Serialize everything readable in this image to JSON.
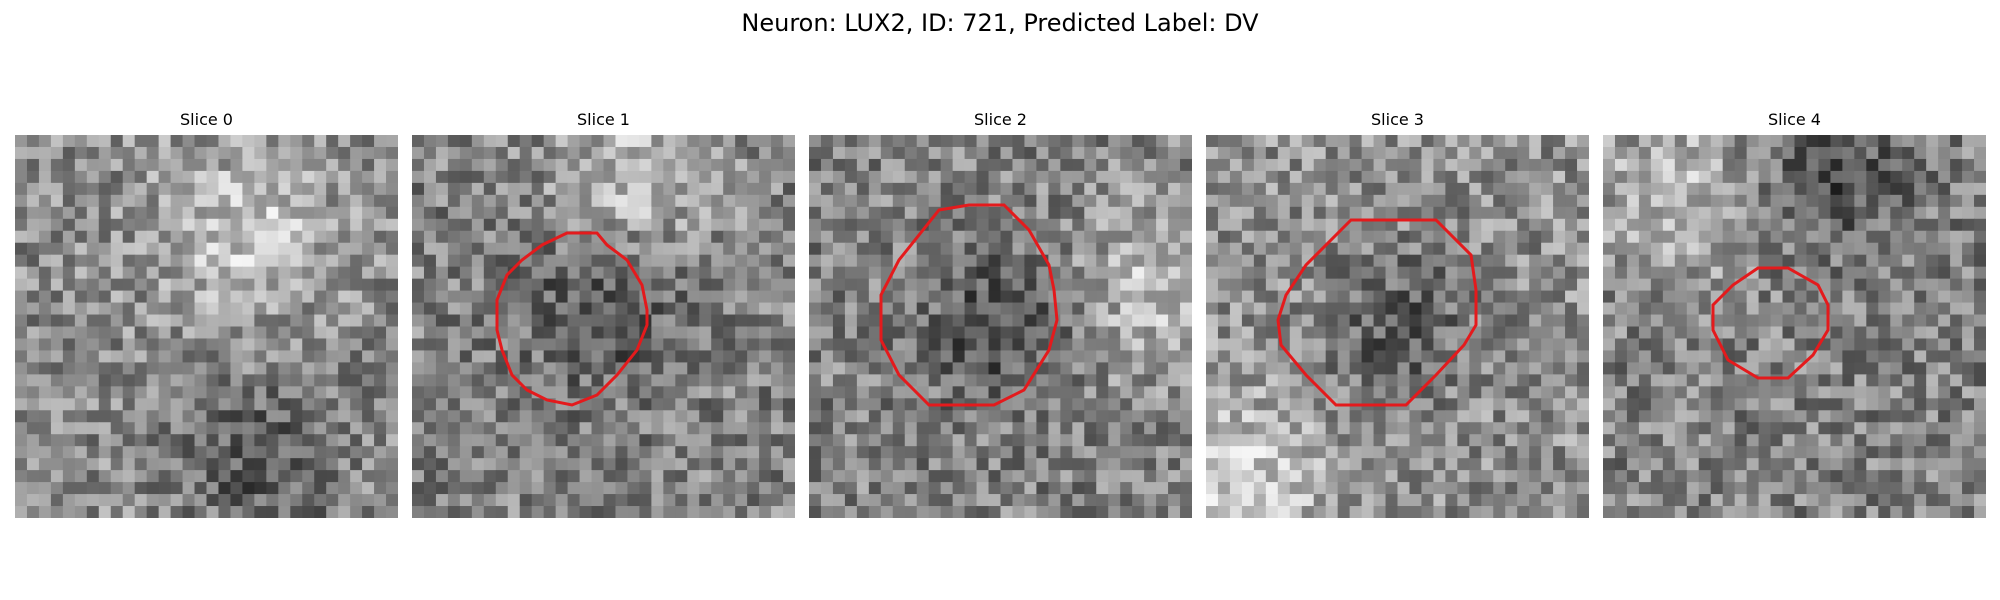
{
  "figure": {
    "title": "Neuron: LUX2, ID: 721, Predicted Label: DV"
  },
  "panels": [
    {
      "title": "Slice 0",
      "has_contour": false,
      "base_gray": 140,
      "bright_spot": [
        0.6,
        0.25
      ],
      "dark_spot": [
        0.65,
        0.85
      ]
    },
    {
      "title": "Slice 1",
      "has_contour": true,
      "base_gray": 130,
      "bright_spot": [
        0.6,
        0.1
      ],
      "dark_spot": [
        0.5,
        0.45
      ]
    },
    {
      "title": "Slice 2",
      "has_contour": true,
      "base_gray": 130,
      "bright_spot": [
        0.9,
        0.4
      ],
      "dark_spot": [
        0.5,
        0.5
      ]
    },
    {
      "title": "Slice 3",
      "has_contour": true,
      "base_gray": 145,
      "bright_spot": [
        0.1,
        0.9
      ],
      "dark_spot": [
        0.5,
        0.5
      ]
    },
    {
      "title": "Slice 4",
      "has_contour": true,
      "base_gray": 130,
      "bright_spot": [
        0.2,
        0.15
      ],
      "dark_spot": [
        0.6,
        0.1
      ]
    }
  ],
  "colors": {
    "contour": "#e41a1c",
    "background": "#ffffff"
  }
}
